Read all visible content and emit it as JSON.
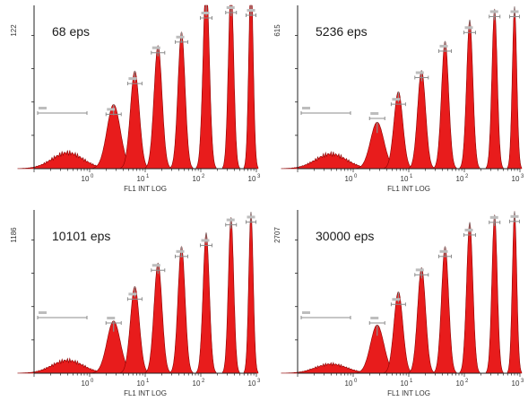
{
  "colors": {
    "peak": "#e81c1c",
    "peak_outline": "#8a0000",
    "peak_tip": "#8c8c8c",
    "gate": "#8c8c8c",
    "axis": "#222222",
    "text": "#1a1a1a"
  },
  "chart_data": [
    {
      "type": "histogram",
      "title": "68 eps",
      "xlabel": "FL1 INT LOG",
      "x_scale": "log",
      "xlim": [
        0.1,
        1000
      ],
      "x_ticks": [
        {
          "base": "10",
          "exp": "0"
        },
        {
          "base": "10",
          "exp": "1"
        },
        {
          "base": "10",
          "exp": "2"
        },
        {
          "base": "10",
          "exp": "3"
        }
      ],
      "ylim": [
        0,
        122
      ],
      "y_max_label": "122",
      "peaks": [
        {
          "x": 0.4,
          "y": 14,
          "width": 0.7
        },
        {
          "x": 2.7,
          "y": 48,
          "width": 0.3
        },
        {
          "x": 6.5,
          "y": 73,
          "width": 0.2
        },
        {
          "x": 17,
          "y": 92,
          "width": 0.18
        },
        {
          "x": 45,
          "y": 102,
          "width": 0.16
        },
        {
          "x": 125,
          "y": 140,
          "width": 0.14
        },
        {
          "x": 350,
          "y": 136,
          "width": 0.12
        },
        {
          "x": 800,
          "y": 142,
          "width": 0.1
        }
      ]
    },
    {
      "type": "histogram",
      "title": "5236 eps",
      "xlabel": "FL1 INT LOG",
      "x_scale": "log",
      "xlim": [
        0.1,
        1000
      ],
      "x_ticks": [
        {
          "base": "10",
          "exp": "0"
        },
        {
          "base": "10",
          "exp": "1"
        },
        {
          "base": "10",
          "exp": "2"
        },
        {
          "base": "10",
          "exp": "3"
        }
      ],
      "ylim": [
        0,
        615
      ],
      "y_max_label": "615",
      "peaks": [
        {
          "x": 0.4,
          "y": 65,
          "width": 0.7
        },
        {
          "x": 2.7,
          "y": 175,
          "width": 0.3
        },
        {
          "x": 6.5,
          "y": 290,
          "width": 0.2
        },
        {
          "x": 17,
          "y": 370,
          "width": 0.18
        },
        {
          "x": 45,
          "y": 480,
          "width": 0.16
        },
        {
          "x": 125,
          "y": 560,
          "width": 0.14
        },
        {
          "x": 350,
          "y": 600,
          "width": 0.12
        },
        {
          "x": 800,
          "y": 610,
          "width": 0.1
        }
      ]
    },
    {
      "type": "histogram",
      "title": "10101 eps",
      "xlabel": "FL1 INT LOG",
      "x_scale": "log",
      "xlim": [
        0.1,
        1000
      ],
      "x_ticks": [
        {
          "base": "10",
          "exp": "0"
        },
        {
          "base": "10",
          "exp": "1"
        },
        {
          "base": "10",
          "exp": "2"
        },
        {
          "base": "10",
          "exp": "3"
        }
      ],
      "ylim": [
        0,
        1186
      ],
      "y_max_label": "1186",
      "peaks": [
        {
          "x": 0.4,
          "y": 110,
          "width": 0.7
        },
        {
          "x": 2.7,
          "y": 380,
          "width": 0.3
        },
        {
          "x": 6.5,
          "y": 630,
          "width": 0.2
        },
        {
          "x": 17,
          "y": 800,
          "width": 0.18
        },
        {
          "x": 45,
          "y": 920,
          "width": 0.16
        },
        {
          "x": 125,
          "y": 1020,
          "width": 0.14
        },
        {
          "x": 350,
          "y": 1130,
          "width": 0.12
        },
        {
          "x": 800,
          "y": 1170,
          "width": 0.1
        }
      ]
    },
    {
      "type": "histogram",
      "title": "30000 eps",
      "xlabel": "FL1 INT LOG",
      "x_scale": "log",
      "xlim": [
        0.1,
        1000
      ],
      "x_ticks": [
        {
          "base": "10",
          "exp": "0"
        },
        {
          "base": "10",
          "exp": "1"
        },
        {
          "base": "10",
          "exp": "2"
        },
        {
          "base": "10",
          "exp": "3"
        }
      ],
      "ylim": [
        0,
        2707
      ],
      "y_max_label": "2707",
      "peaks": [
        {
          "x": 0.4,
          "y": 180,
          "width": 0.7
        },
        {
          "x": 2.7,
          "y": 800,
          "width": 0.3
        },
        {
          "x": 6.5,
          "y": 1350,
          "width": 0.2
        },
        {
          "x": 17,
          "y": 1750,
          "width": 0.18
        },
        {
          "x": 45,
          "y": 2100,
          "width": 0.16
        },
        {
          "x": 125,
          "y": 2500,
          "width": 0.14
        },
        {
          "x": 350,
          "y": 2620,
          "width": 0.12
        },
        {
          "x": 800,
          "y": 2680,
          "width": 0.1
        }
      ]
    }
  ]
}
